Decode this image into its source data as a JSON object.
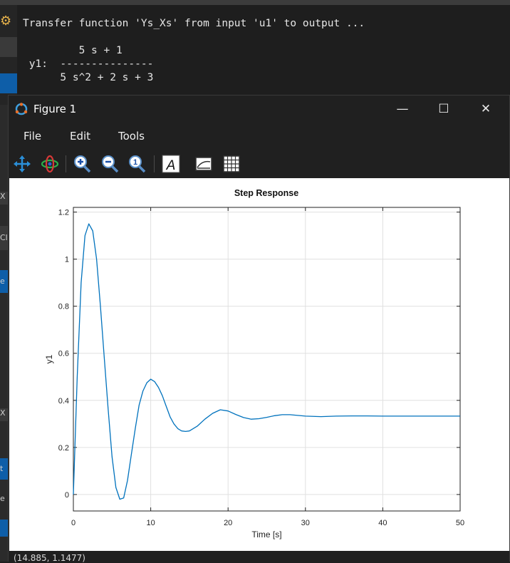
{
  "console": {
    "line1": "Transfer function 'Ys_Xs' from input 'u1' to output ...",
    "line2": "",
    "numerator": "         5 s + 1",
    "label_line": " y1:  ---------------",
    "denominator": "      5 s^2 + 2 s + 3"
  },
  "left_edge": {
    "item1": "X",
    "item2": "Cl",
    "item3": "e",
    "item4": "X",
    "item5": "t",
    "item6": "e"
  },
  "figure": {
    "title": "Figure 1",
    "minimize": "—",
    "maximize": "☐",
    "close": "✕",
    "menu": {
      "file": "File",
      "edit": "Edit",
      "tools": "Tools"
    },
    "toolbar_icons": [
      "pan-icon",
      "rotate-icon",
      "zoom-in-icon",
      "zoom-out-icon",
      "zoom-reset-icon",
      "text-icon",
      "axes-icon",
      "grid-icon"
    ],
    "status": "(14.885, 1.1477)"
  },
  "chart_data": {
    "type": "line",
    "title": "Step Response",
    "xlabel": "Time [s]",
    "ylabel": "y1",
    "xlim": [
      0,
      50
    ],
    "ylim": [
      -0.07,
      1.22
    ],
    "xticks": [
      0,
      10,
      20,
      30,
      40,
      50
    ],
    "yticks": [
      0,
      0.2,
      0.4,
      0.6,
      0.8,
      1,
      1.2
    ],
    "ytick_labels": [
      "0",
      "0.2",
      "0.4",
      "0.6",
      "0.8",
      "1",
      "1.2"
    ],
    "grid": true,
    "color": "#0072bd",
    "series": [
      {
        "x": [
          0,
          0.5,
          1,
          1.5,
          2,
          2.5,
          3,
          3.5,
          4,
          4.5,
          5,
          5.5,
          6,
          6.5,
          7,
          7.5,
          8,
          8.5,
          9,
          9.5,
          10,
          10.5,
          11,
          11.5,
          12,
          12.5,
          13,
          13.5,
          14,
          14.5,
          15,
          16,
          17,
          18,
          19,
          20,
          21,
          22,
          23,
          24,
          25,
          26,
          27,
          28,
          29,
          30,
          32,
          34,
          36,
          38,
          40,
          42,
          44,
          46,
          48,
          50
        ],
        "y": [
          0,
          0.5,
          0.9,
          1.1,
          1.15,
          1.12,
          1.0,
          0.8,
          0.58,
          0.36,
          0.16,
          0.03,
          -0.02,
          -0.015,
          0.06,
          0.17,
          0.28,
          0.38,
          0.44,
          0.475,
          0.49,
          0.48,
          0.455,
          0.42,
          0.375,
          0.33,
          0.3,
          0.28,
          0.27,
          0.268,
          0.27,
          0.29,
          0.32,
          0.345,
          0.36,
          0.355,
          0.34,
          0.327,
          0.32,
          0.322,
          0.328,
          0.335,
          0.339,
          0.339,
          0.336,
          0.333,
          0.331,
          0.333,
          0.334,
          0.334,
          0.333,
          0.333,
          0.333,
          0.333,
          0.333,
          0.333
        ]
      }
    ]
  }
}
